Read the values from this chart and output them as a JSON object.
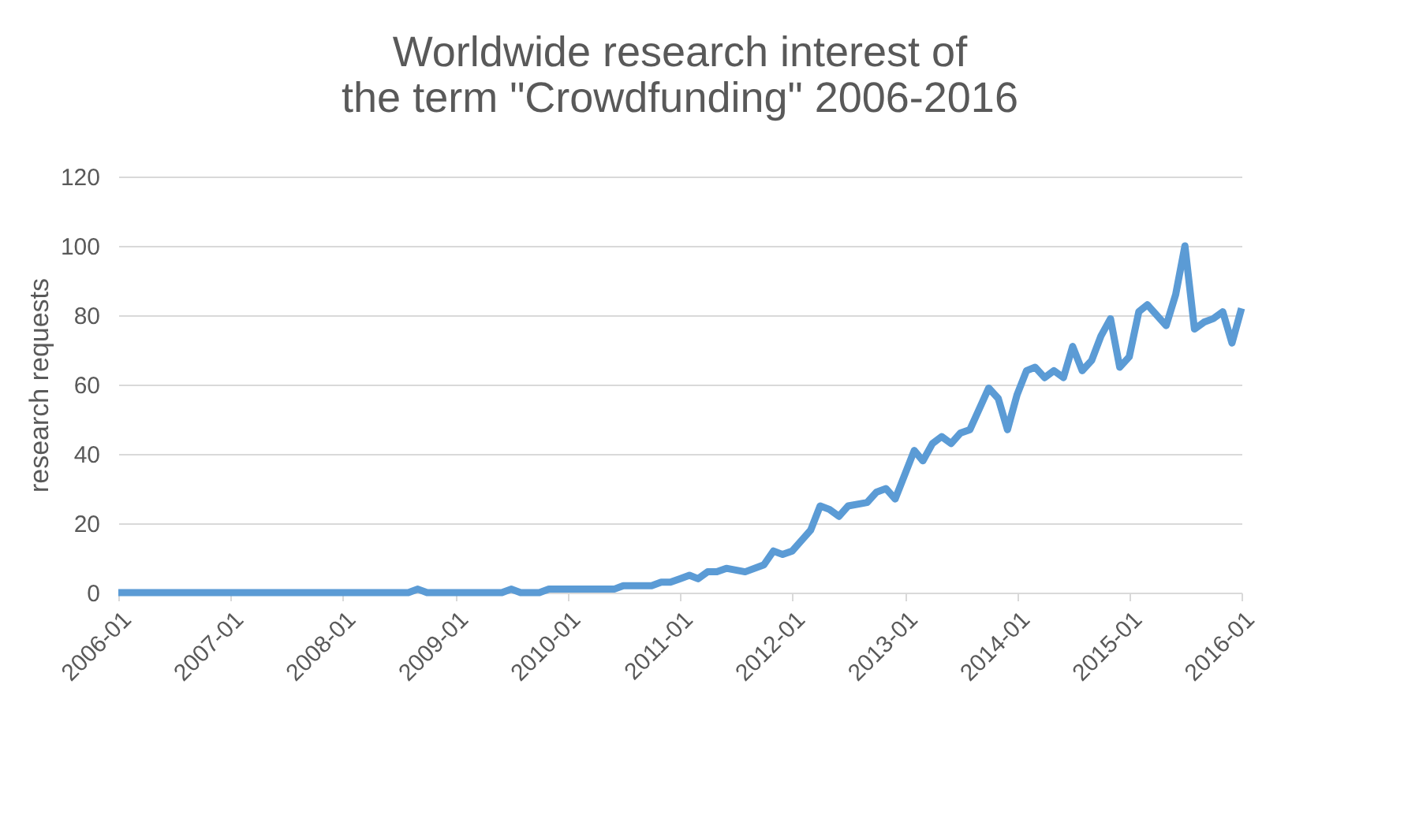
{
  "chart_data": {
    "type": "line",
    "title": "Worldwide research interest of the term \"Crowdfunding\" 2006-2016",
    "ylabel": "research requests",
    "x": [
      "2006-01",
      "2008-08",
      "2008-09",
      "2008-10",
      "2009-06",
      "2009-07",
      "2009-08",
      "2009-10",
      "2009-11",
      "2010-06",
      "2010-07",
      "2010-10",
      "2010-11",
      "2010-12",
      "2011-01",
      "2011-02",
      "2011-03",
      "2011-04",
      "2011-05",
      "2011-06",
      "2011-08",
      "2011-10",
      "2011-11",
      "2011-12",
      "2012-01",
      "2012-03",
      "2012-04",
      "2012-05",
      "2012-06",
      "2012-07",
      "2012-09",
      "2012-10",
      "2012-11",
      "2012-12",
      "2013-02",
      "2013-03",
      "2013-04",
      "2013-05",
      "2013-06",
      "2013-07",
      "2013-08",
      "2013-10",
      "2013-11",
      "2013-12",
      "2014-01",
      "2014-02",
      "2014-03",
      "2014-04",
      "2014-05",
      "2014-06",
      "2014-07",
      "2014-08",
      "2014-09",
      "2014-10",
      "2014-11",
      "2014-12",
      "2015-01",
      "2015-02",
      "2015-03",
      "2015-05",
      "2015-06",
      "2015-07",
      "2015-08",
      "2015-09",
      "2015-10",
      "2015-11",
      "2015-12",
      "2016-01"
    ],
    "series": [
      {
        "color": "#5b9bd5",
        "values": [
          0,
          0,
          1,
          0,
          0,
          1,
          0,
          0,
          1,
          1,
          2,
          2,
          3,
          3,
          4,
          5,
          4,
          6,
          6,
          7,
          6,
          8,
          12,
          11,
          12,
          18,
          25,
          24,
          22,
          25,
          26,
          29,
          30,
          27,
          41,
          38,
          43,
          45,
          43,
          46,
          47,
          59,
          56,
          47,
          57,
          64,
          65,
          62,
          64,
          62,
          71,
          64,
          67,
          74,
          79,
          65,
          68,
          81,
          83,
          77,
          86,
          100,
          76,
          78,
          79,
          81,
          72,
          82
        ]
      }
    ],
    "xlim": [
      "2006-01",
      "2016-01"
    ],
    "xticks": [
      "2006-01",
      "2007-01",
      "2008-01",
      "2009-01",
      "2010-01",
      "2011-01",
      "2012-01",
      "2013-01",
      "2014-01",
      "2015-01",
      "2016-01"
    ],
    "ylim": [
      0,
      120
    ],
    "yticks": [
      0,
      20,
      40,
      60,
      80,
      100,
      120
    ],
    "grid": "y",
    "marker": "none",
    "line_style": "solid"
  }
}
